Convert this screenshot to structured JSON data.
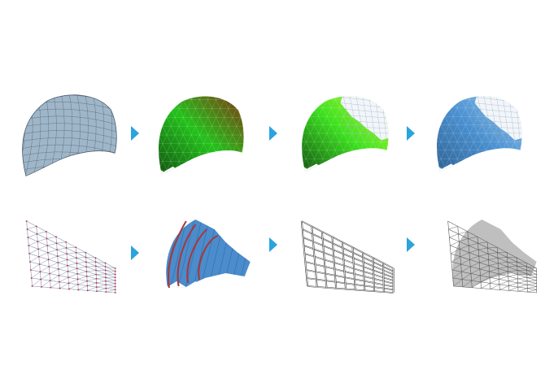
{
  "diagram": {
    "arrow_color": "#2ba3dc",
    "rows": [
      {
        "panels": [
          {
            "name": "gridshell-surface-mesh",
            "kind": "mesh",
            "colors": [
              "#9fb6c8",
              "#445566"
            ]
          },
          {
            "name": "curvature-analysis-mesh",
            "kind": "faceted",
            "colors": [
              "#0f4a0f",
              "#22c21a",
              "#8a2a10"
            ]
          },
          {
            "name": "partial-panelized-mesh",
            "kind": "faceted-partial",
            "colors": [
              "#0f4a0f",
              "#3ce01f",
              "#ccff33"
            ]
          },
          {
            "name": "blue-panelized-mesh",
            "kind": "faceted-partial",
            "colors": [
              "#2c5f8f",
              "#4a90d0",
              "#9ccdf0"
            ]
          }
        ]
      },
      {
        "panels": [
          {
            "name": "node-point-grid",
            "kind": "wire-red",
            "colors": [
              "#9aa3b8",
              "#c0304a"
            ]
          },
          {
            "name": "panel-strip-assembly",
            "kind": "strips",
            "colors": [
              "#4a8ccc",
              "#a8383a"
            ]
          },
          {
            "name": "timber-lath-frame",
            "kind": "laths",
            "colors": [
              "#444444"
            ]
          },
          {
            "name": "final-gridshell-structure",
            "kind": "dense",
            "colors": [
              "#555555",
              "#222222"
            ]
          }
        ]
      }
    ]
  }
}
